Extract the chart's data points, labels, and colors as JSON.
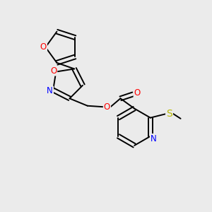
{
  "background_color": "#ebebeb",
  "figsize": [
    3.0,
    3.0
  ],
  "dpi": 100,
  "bond_color": "#000000",
  "atom_colors": {
    "O": "#ff0000",
    "N": "#0000ff",
    "S": "#b8b800",
    "C": "#000000"
  },
  "bond_width": 1.4,
  "font_size": 8.5,
  "xlim": [
    0,
    10
  ],
  "ylim": [
    0,
    10
  ]
}
